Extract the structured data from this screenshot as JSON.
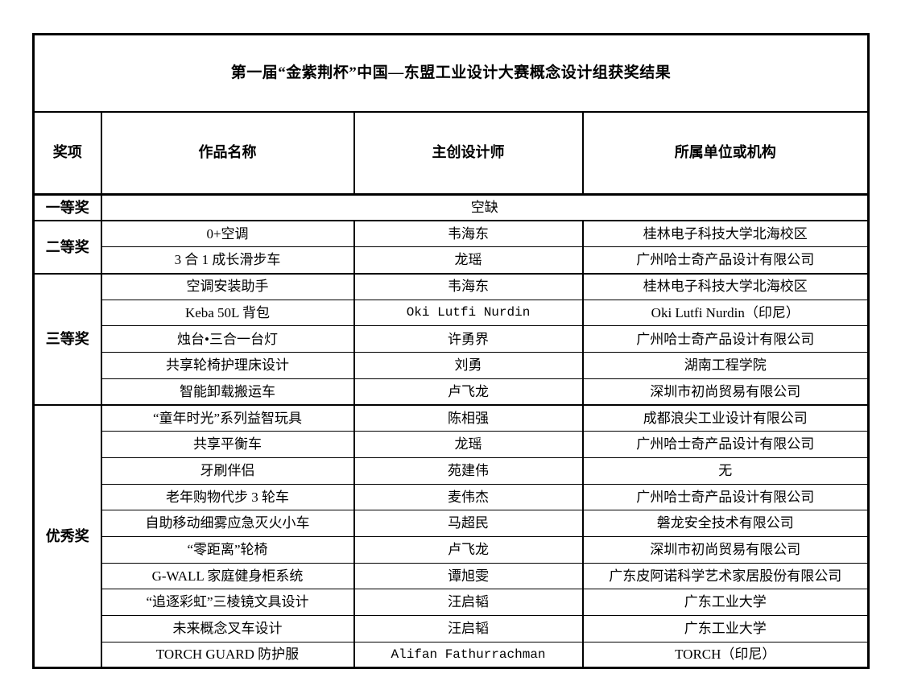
{
  "page": {
    "background": "#ffffff",
    "text_color": "#000000",
    "border_color": "#000000"
  },
  "title": "第一届“金紫荆杯”中国—东盟工业设计大赛概念设计组获奖结果",
  "table": {
    "headers": {
      "award": "奖项",
      "work": "作品名称",
      "designer": "主创设计师",
      "org": "所属单位或机构"
    },
    "sections": [
      {
        "award": "一等奖",
        "rows": [
          {
            "work": "空缺",
            "designer": "",
            "org": "",
            "merged": true
          }
        ]
      },
      {
        "award": "二等奖",
        "rows": [
          {
            "work": "0+空调",
            "designer": "韦海东",
            "org": "桂林电子科技大学北海校区"
          },
          {
            "work": "3 合 1 成长滑步车",
            "designer": "龙瑶",
            "org": "广州哈士奇产品设计有限公司"
          }
        ]
      },
      {
        "award": "三等奖",
        "rows": [
          {
            "work": "空调安装助手",
            "designer": "韦海东",
            "org": "桂林电子科技大学北海校区"
          },
          {
            "work": "Keba 50L 背包",
            "designer": "Oki Lutfi Nurdin",
            "org": "Oki Lutfi Nurdin（印尼）"
          },
          {
            "work": "烛台•三合一台灯",
            "designer": "许勇界",
            "org": "广州哈士奇产品设计有限公司"
          },
          {
            "work": "共享轮椅护理床设计",
            "designer": "刘勇",
            "org": "湖南工程学院"
          },
          {
            "work": "智能卸载搬运车",
            "designer": "卢飞龙",
            "org": "深圳市初尚贸易有限公司"
          }
        ]
      },
      {
        "award": "优秀奖",
        "rows": [
          {
            "work": "“童年时光”系列益智玩具",
            "designer": "陈相强",
            "org": "成都浪尖工业设计有限公司"
          },
          {
            "work": "共享平衡车",
            "designer": "龙瑶",
            "org": "广州哈士奇产品设计有限公司"
          },
          {
            "work": "牙刷伴侣",
            "designer": "苑建伟",
            "org": "无"
          },
          {
            "work": "老年购物代步 3 轮车",
            "designer": "麦伟杰",
            "org": "广州哈士奇产品设计有限公司"
          },
          {
            "work": "自助移动细雾应急灭火小车",
            "designer": "马超民",
            "org": "磐龙安全技术有限公司"
          },
          {
            "work": "“零距离”轮椅",
            "designer": "卢飞龙",
            "org": "深圳市初尚贸易有限公司"
          },
          {
            "work": "G-WALL 家庭健身柜系统",
            "designer": "谭旭雯",
            "org": "广东皮阿诺科学艺术家居股份有限公司"
          },
          {
            "work": "“追逐彩虹”三棱镜文具设计",
            "designer": "汪启韬",
            "org": "广东工业大学"
          },
          {
            "work": "未来概念叉车设计",
            "designer": "汪启韬",
            "org": "广东工业大学"
          },
          {
            "work": "TORCH GUARD 防护服",
            "designer": "Alifan Fathurrachman",
            "org": "TORCH（印尼）"
          }
        ]
      }
    ]
  }
}
